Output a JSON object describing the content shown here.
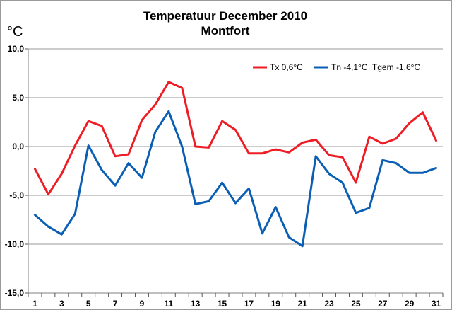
{
  "chart_data": {
    "type": "line",
    "title": "Temperatuur December 2010",
    "subtitle": "Montfort",
    "ylabel": "°C",
    "xlabel": "",
    "x": [
      1,
      2,
      3,
      4,
      5,
      6,
      7,
      8,
      9,
      10,
      11,
      12,
      13,
      14,
      15,
      16,
      17,
      18,
      19,
      20,
      21,
      22,
      23,
      24,
      25,
      26,
      27,
      28,
      29,
      30,
      31
    ],
    "x_tick_labels": [
      "1",
      "3",
      "5",
      "7",
      "9",
      "11",
      "13",
      "15",
      "17",
      "19",
      "21",
      "23",
      "25",
      "27",
      "29",
      "31"
    ],
    "y_tick_labels": [
      "10,0",
      "5,0",
      "0,0",
      "-5,0",
      "-10,0",
      "-15,0"
    ],
    "ylim": [
      -15,
      10
    ],
    "grid": "horizontal",
    "legend_position": "top-right",
    "series": [
      {
        "name": "Tx 0,6°C",
        "color": "#ee1c24",
        "values": [
          -2.3,
          -4.9,
          -2.8,
          0.1,
          2.6,
          2.1,
          -1.0,
          -0.8,
          2.7,
          4.3,
          6.6,
          6.0,
          0.0,
          -0.1,
          2.6,
          1.7,
          -0.7,
          -0.7,
          -0.3,
          -0.6,
          0.4,
          0.7,
          -0.9,
          -1.1,
          -3.7,
          1.0,
          0.3,
          0.8,
          2.4,
          3.5,
          0.6
        ]
      },
      {
        "name": "Tn -4,1°C  Tgem -1,6°C",
        "color": "#0a5fb4",
        "values": [
          -7.0,
          -8.2,
          -9.0,
          -6.9,
          0.1,
          -2.4,
          -4.0,
          -1.7,
          -3.2,
          1.5,
          3.6,
          0.0,
          -5.9,
          -5.6,
          -3.7,
          -5.8,
          -4.3,
          -8.9,
          -6.2,
          -9.3,
          -10.2,
          -1.0,
          -2.8,
          -3.7,
          -6.8,
          -6.3,
          -1.4,
          -1.7,
          -2.7,
          -2.7,
          -2.2
        ]
      }
    ]
  }
}
